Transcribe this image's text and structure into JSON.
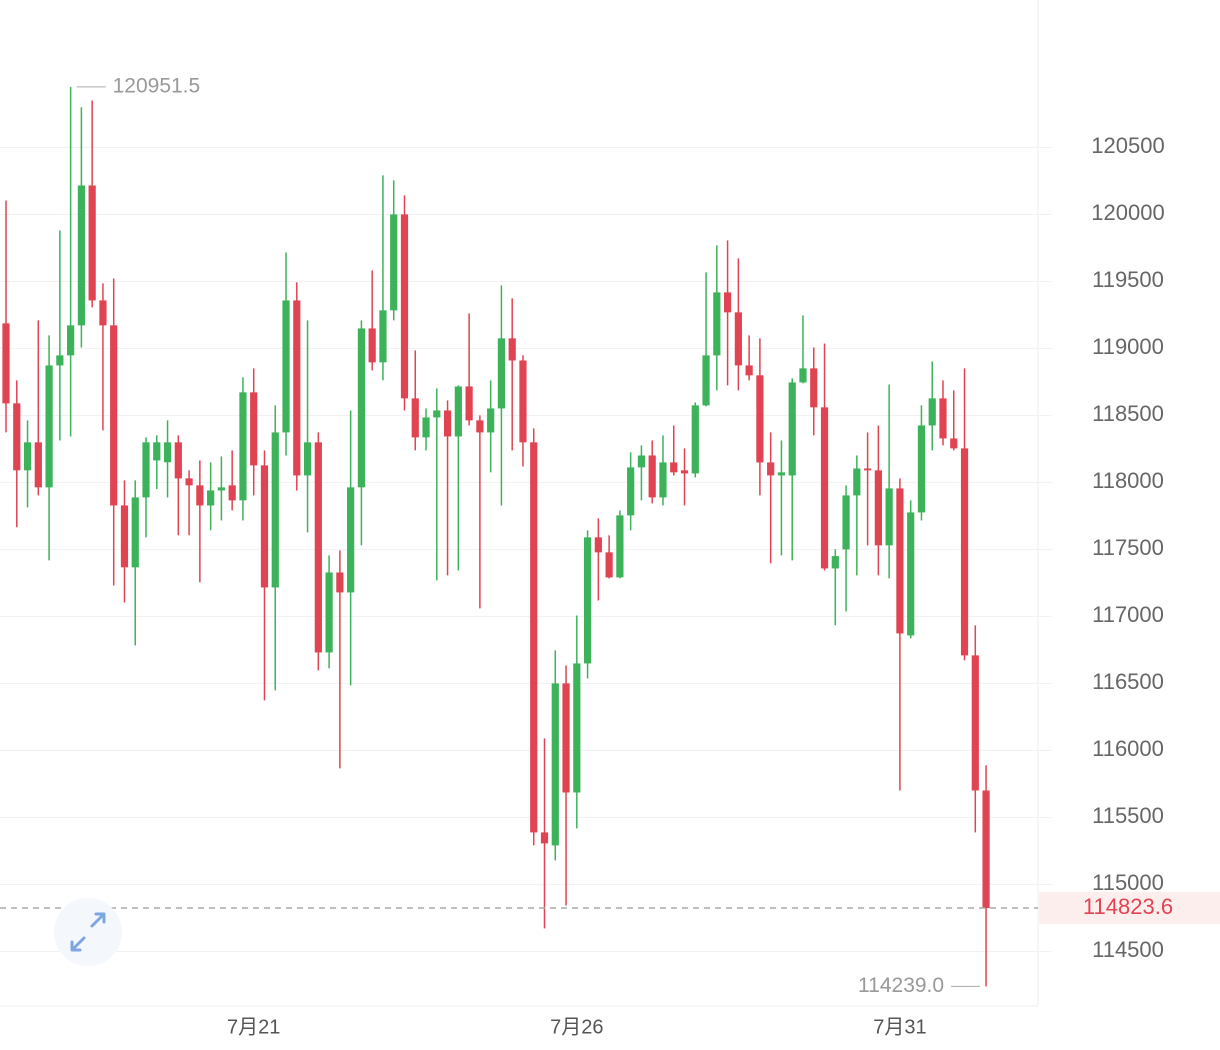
{
  "chart_data": {
    "type": "candlestick",
    "categories": [
      null,
      null,
      null,
      null,
      null,
      null,
      null,
      null,
      null,
      null,
      null,
      null,
      null,
      null,
      null,
      null,
      null,
      null,
      null,
      null,
      null,
      null,
      null,
      "7月21",
      null,
      null,
      null,
      null,
      null,
      null,
      null,
      null,
      null,
      null,
      null,
      null,
      null,
      null,
      null,
      null,
      null,
      null,
      null,
      null,
      null,
      null,
      null,
      null,
      null,
      null,
      null,
      null,
      null,
      "7月26",
      null,
      null,
      null,
      null,
      null,
      null,
      null,
      null,
      null,
      null,
      null,
      null,
      null,
      null,
      null,
      null,
      null,
      null,
      null,
      null,
      null,
      null,
      null,
      null,
      null,
      null,
      null,
      null,
      null,
      "7月31",
      null,
      null,
      null,
      null,
      null,
      null,
      null,
      null
    ],
    "open": [
      119187,
      118590,
      118090,
      118299,
      117963,
      118873,
      118948,
      119172,
      120216,
      119358,
      119172,
      117828,
      117366,
      117888,
      118164,
      118150,
      118299,
      118030,
      117978,
      117828,
      117940,
      117978,
      117866,
      118672,
      118127,
      117216,
      118373,
      119358,
      118052,
      118299,
      116731,
      117328,
      117179,
      117963,
      119149,
      118896,
      119284,
      120000,
      118627,
      118336,
      118485,
      118537,
      118343,
      118716,
      118463,
      118373,
      118552,
      119075,
      118910,
      118299,
      115388,
      115291,
      116500,
      115686,
      116649,
      117590,
      117478,
      117291,
      117754,
      118112,
      118201,
      117888,
      118149,
      118090,
      118067,
      118575,
      118948,
      119418,
      119269,
      118873,
      118799,
      118149,
      118052,
      118052,
      118746,
      118851,
      118560,
      117358,
      117500,
      117903,
      118104,
      118090,
      117530,
      117955,
      116858,
      117776,
      118425,
      118627,
      118328,
      118254,
      116709,
      115701
    ],
    "high": [
      120104,
      118761,
      118463,
      119209,
      119097,
      119881,
      120951.5,
      120799,
      120850,
      119485,
      119522,
      118015,
      118015,
      118336,
      118351,
      118463,
      118351,
      118090,
      118164,
      118149,
      118194,
      118239,
      118784,
      118851,
      118239,
      118575,
      119716,
      119493,
      119209,
      118373,
      117455,
      117493,
      118537,
      119209,
      119582,
      120291,
      120254,
      120142,
      118985,
      118552,
      118702,
      118612,
      118724,
      119261,
      118500,
      118761,
      119470,
      119373,
      118948,
      118403,
      116090,
      116746,
      116634,
      117007,
      117642,
      117731,
      117605,
      117791,
      118224,
      118276,
      118313,
      118351,
      118425,
      118254,
      118597,
      119567,
      119769,
      119806,
      119672,
      119097,
      119075,
      118373,
      118313,
      118776,
      119246,
      119007,
      119037,
      117500,
      117978,
      118201,
      118373,
      118425,
      118731,
      118030,
      117866,
      118575,
      118903,
      118761,
      118687,
      118851,
      116933,
      115888
    ],
    "low": [
      118373,
      117665,
      117814,
      117903,
      117418,
      118313,
      118343,
      119007,
      119306,
      118388,
      117231,
      117104,
      116784,
      117590,
      117950,
      117888,
      117605,
      117605,
      117254,
      117642,
      117716,
      117791,
      117716,
      117903,
      116373,
      116448,
      118201,
      117940,
      117627,
      116597,
      116612,
      115866,
      116485,
      117530,
      118836,
      118761,
      119209,
      118537,
      118239,
      118239,
      117269,
      117306,
      117343,
      118425,
      117060,
      118075,
      117828,
      118239,
      118119,
      115291,
      114672,
      115179,
      114843,
      115418,
      116537,
      117119,
      117284,
      117284,
      117642,
      117866,
      117843,
      117828,
      118052,
      117828,
      118037,
      118567,
      118687,
      118724,
      118687,
      118761,
      117903,
      117396,
      117455,
      117418,
      118739,
      118351,
      117343,
      116933,
      117037,
      117306,
      117530,
      117306,
      117284,
      115701,
      116836,
      117716,
      118239,
      118276,
      118239,
      116672,
      115388,
      114239
    ],
    "close": [
      118590,
      118090,
      118299,
      117963,
      118873,
      118948,
      119172,
      120216,
      119358,
      119172,
      117828,
      117366,
      117888,
      118299,
      118299,
      118299,
      118030,
      117978,
      117828,
      117940,
      117963,
      117866,
      118672,
      118127,
      117216,
      118373,
      119358,
      118052,
      118299,
      116731,
      117328,
      117179,
      117963,
      119149,
      118896,
      119284,
      120000,
      118627,
      118336,
      118485,
      118537,
      118343,
      118716,
      118463,
      118373,
      118552,
      119075,
      118910,
      118299,
      115388,
      115306,
      116500,
      115686,
      116649,
      117590,
      117478,
      117291,
      117754,
      118112,
      118201,
      117888,
      118149,
      118075,
      118067,
      118575,
      118948,
      119418,
      119269,
      118873,
      118799,
      118149,
      118052,
      118075,
      118746,
      118851,
      118560,
      117358,
      117450,
      117903,
      118104,
      118090,
      117530,
      117955,
      116873,
      117776,
      118425,
      118627,
      118328,
      118254,
      116709,
      115701,
      114823.6
    ],
    "up_color": "#3cb35a",
    "down_color": "#e04452",
    "ylim": [
      114100,
      121600
    ],
    "yticks": [
      114500,
      115000,
      115500,
      116000,
      116500,
      117000,
      117500,
      118000,
      118500,
      119000,
      119500,
      120000,
      120500
    ],
    "grid": true,
    "high_mark": 120951.5,
    "low_mark": {
      "value": 114239.0,
      "label": "114239.0"
    },
    "last_price": 114823.6
  }
}
